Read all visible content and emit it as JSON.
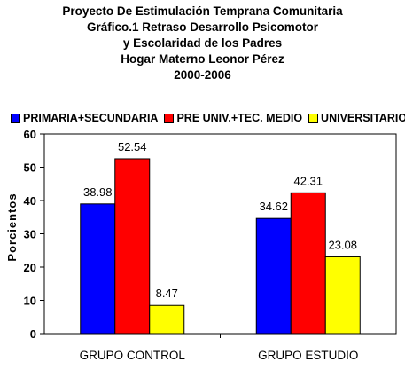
{
  "title_lines": [
    "Proyecto De Estimulación Temprana Comunitaria",
    "Gráfico.1 Retraso Desarrollo Psicomotor",
    "y Escolaridad de los Padres",
    "Hogar Materno Leonor Pérez",
    "2000-2006"
  ],
  "chart_data": {
    "type": "bar",
    "categories": [
      "GRUPO CONTROL",
      "GRUPO ESTUDIO"
    ],
    "series": [
      {
        "name": "PRIMARIA+SECUNDARIA",
        "values": [
          38.98,
          34.62
        ],
        "color": "#0000ff"
      },
      {
        "name": "PRE UNIV.+TEC. MEDIO",
        "values": [
          52.54,
          42.31
        ],
        "color": "#ff0000"
      },
      {
        "name": "UNIVERSITARIO",
        "values": [
          8.47,
          23.08
        ],
        "color": "#ffff00"
      }
    ],
    "data_labels": [
      [
        "38.98",
        "34.62"
      ],
      [
        "52.54",
        "42.31"
      ],
      [
        "8.47",
        "23.08"
      ]
    ],
    "xlabel": "",
    "ylabel": "Porcientos",
    "ylim": [
      0,
      60
    ],
    "yticks": [
      "0",
      "10",
      "20",
      "30",
      "40",
      "50",
      "60"
    ],
    "grid": false,
    "legend_position": "top"
  }
}
